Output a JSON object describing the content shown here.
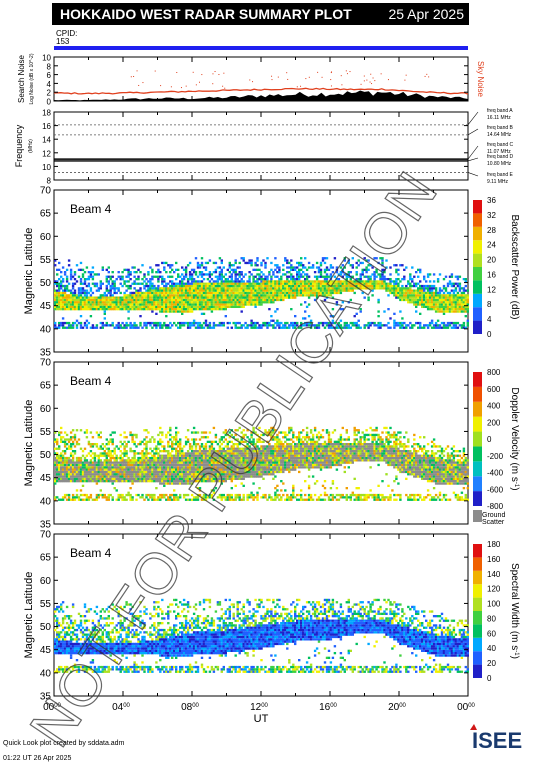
{
  "header": {
    "title": "HOKKAIDO WEST RADAR SUMMARY PLOT",
    "date": "25 Apr 2025",
    "cpid_label": "CPID:",
    "cpid_value": "153"
  },
  "footer": {
    "credit": "Quick Look plot created by sddata.adm",
    "timestamp": "01:22 UT 26 Apr 2025",
    "logo_text": "ISEE"
  },
  "watermark": "NOT FOR PUBLICATION",
  "colors": {
    "header_bg": "#000000",
    "cpid_bar": "#1f1ff0",
    "noise": "#e0401e",
    "ground_scatter": "#8c8c8c"
  },
  "chart_data": [
    {
      "id": "noise",
      "type": "area",
      "ylabel": "Search Noise",
      "ylabel_sub": "Log Noise (dB x 10^-2)",
      "right_label": "Sky Noise",
      "ylim": [
        0,
        10
      ],
      "yticks": [
        "0",
        "2",
        "4",
        "6",
        "8",
        "10"
      ],
      "x": [
        0,
        2,
        4,
        6,
        8,
        10,
        12,
        14,
        16,
        18,
        19,
        20,
        22,
        24
      ],
      "search_noise": [
        0.2,
        0.2,
        0.4,
        0.6,
        0.6,
        0.8,
        1.2,
        1.5,
        1.7,
        1.9,
        2.0,
        1.6,
        1.0,
        0.6
      ],
      "sky_noise": [
        1.8,
        1.7,
        1.8,
        2.0,
        2.2,
        2.4,
        2.6,
        2.8,
        2.7,
        2.6,
        2.7,
        2.4,
        1.9,
        1.7
      ]
    },
    {
      "id": "frequency",
      "type": "line",
      "ylabel": "Frequency",
      "ylabel_sub": "(MHz)",
      "ylim": [
        8,
        18
      ],
      "yticks": [
        "8",
        "10",
        "12",
        "14",
        "16",
        "18"
      ],
      "bands": [
        {
          "label": "freq band A",
          "value": "16.11 MHz",
          "freq": 16.11
        },
        {
          "label": "freq band B",
          "value": "14.64 MHz",
          "freq": 14.64
        },
        {
          "label": "freq band C",
          "value": "11.07 MHz",
          "freq": 11.07
        },
        {
          "label": "freq band D",
          "value": "10.80 MHz",
          "freq": 10.8
        },
        {
          "label": "freq band E",
          "value": "9.11 MHz",
          "freq": 9.11
        }
      ],
      "operating": [
        {
          "x": [
            0,
            24
          ],
          "y": 10.8
        },
        {
          "x": [
            0,
            24
          ],
          "y": 11.07
        }
      ]
    },
    {
      "id": "power",
      "type": "heatmap",
      "beam_label": "Beam  4",
      "ylabel": "Magnetic Latitude",
      "ylim": [
        35,
        70
      ],
      "yticks": [
        "35",
        "40",
        "45",
        "50",
        "55",
        "60",
        "65",
        "70"
      ],
      "colorbar_title": "Backscatter Power (dB)",
      "colorbar_ticks": [
        "0",
        "4",
        "8",
        "12",
        "16",
        "20",
        "24",
        "28",
        "32",
        "36"
      ],
      "colormap": [
        "#2020c8",
        "#2060ff",
        "#00a8ff",
        "#00c060",
        "#40d040",
        "#b0e020",
        "#f0f000",
        "#f0b000",
        "#f06000",
        "#e01010"
      ],
      "region": {
        "x": [
          0,
          2,
          4,
          6,
          8,
          10,
          12,
          14,
          16,
          18,
          19,
          20,
          22,
          24
        ],
        "top": [
          55.5,
          53.5,
          53,
          54,
          55,
          55.5,
          55.5,
          55.5,
          55,
          55.5,
          55,
          54,
          52,
          51
        ],
        "core_top": [
          48,
          46.5,
          47,
          48.5,
          49.5,
          49.5,
          50,
          50.5,
          50,
          50.5,
          50,
          49,
          47.5,
          47
        ],
        "core_bottom": [
          44,
          44,
          44,
          43.5,
          43.5,
          44,
          45,
          46.5,
          47,
          48.5,
          48.5,
          46,
          43.5,
          43
        ],
        "bottom": [
          40,
          40,
          40,
          40,
          40,
          40,
          40,
          40,
          40,
          40,
          40,
          40,
          40,
          40
        ]
      }
    },
    {
      "id": "velocity",
      "type": "heatmap",
      "beam_label": "Beam  4",
      "ylabel": "Magnetic Latitude",
      "ylim": [
        35,
        70
      ],
      "yticks": [
        "35",
        "40",
        "45",
        "50",
        "55",
        "60",
        "65",
        "70"
      ],
      "colorbar_title": "Doppler Velocity (m s",
      "colorbar_unit_sup": "-1",
      "colorbar_ticks": [
        "800",
        "600",
        "400",
        "200",
        "0",
        "-200",
        "-400",
        "-600",
        "-800"
      ],
      "colormap": [
        "#2020c8",
        "#2080ff",
        "#00c0c0",
        "#00c060",
        "#a0e020",
        "#f0f000",
        "#f0a000",
        "#f05000",
        "#e01010"
      ],
      "ground_label_1": "Ground",
      "ground_label_2": "Scatter",
      "region": {
        "x": [
          0,
          2,
          4,
          6,
          8,
          10,
          12,
          14,
          16,
          18,
          19,
          20,
          22,
          24
        ],
        "top": [
          56,
          55,
          55,
          55.5,
          56,
          56,
          56,
          56,
          56,
          56,
          56,
          55,
          53,
          51
        ],
        "core_top": [
          49,
          48,
          48.5,
          49.5,
          50.5,
          51,
          51.5,
          52,
          52,
          52.5,
          52,
          51,
          49,
          48
        ],
        "core_bottom": [
          44,
          44,
          44,
          43.5,
          43.5,
          44,
          45,
          46.5,
          47,
          48.5,
          48.5,
          46,
          43.5,
          43
        ],
        "bottom": [
          40,
          40,
          40,
          40,
          40,
          40,
          40,
          40,
          40,
          40,
          40,
          40,
          40,
          40
        ]
      }
    },
    {
      "id": "width",
      "type": "heatmap",
      "beam_label": "Beam  4",
      "ylabel": "Magnetic Latitude",
      "xlabel": "UT",
      "xlim": [
        0,
        24
      ],
      "xticks": [
        {
          "h": "00",
          "m": "00"
        },
        {
          "h": "04",
          "m": "00"
        },
        {
          "h": "08",
          "m": "00"
        },
        {
          "h": "12",
          "m": "00"
        },
        {
          "h": "16",
          "m": "00"
        },
        {
          "h": "20",
          "m": "00"
        },
        {
          "h": "00",
          "m": "00"
        }
      ],
      "ylim": [
        35,
        70
      ],
      "yticks": [
        "35",
        "40",
        "45",
        "50",
        "55",
        "60",
        "65",
        "70"
      ],
      "colorbar_title": "Spectral Width (m s",
      "colorbar_unit_sup": "-1",
      "colorbar_ticks": [
        "0",
        "20",
        "40",
        "60",
        "80",
        "100",
        "120",
        "140",
        "160",
        "180"
      ],
      "colormap": [
        "#2020c8",
        "#2060ff",
        "#00a8ff",
        "#00c060",
        "#40d040",
        "#b0e020",
        "#f0f000",
        "#f0b000",
        "#f06000",
        "#e01010"
      ],
      "region": {
        "x": [
          0,
          2,
          4,
          6,
          8,
          10,
          12,
          14,
          16,
          18,
          19,
          20,
          22,
          24
        ],
        "top": [
          56,
          55,
          55,
          55.5,
          56,
          56,
          56,
          56,
          56,
          56,
          56,
          55,
          53,
          51
        ],
        "core_top": [
          47,
          46,
          46,
          47,
          48.5,
          49,
          50,
          51,
          51,
          51.5,
          51,
          50,
          48,
          47
        ],
        "core_bottom": [
          44,
          44,
          44,
          43.5,
          43.5,
          44,
          45,
          46.5,
          47,
          48.5,
          48.5,
          46,
          43.5,
          43
        ],
        "bottom": [
          40,
          40,
          40,
          40,
          40,
          40,
          40,
          40,
          40,
          40,
          40,
          40,
          40,
          40
        ]
      }
    }
  ]
}
